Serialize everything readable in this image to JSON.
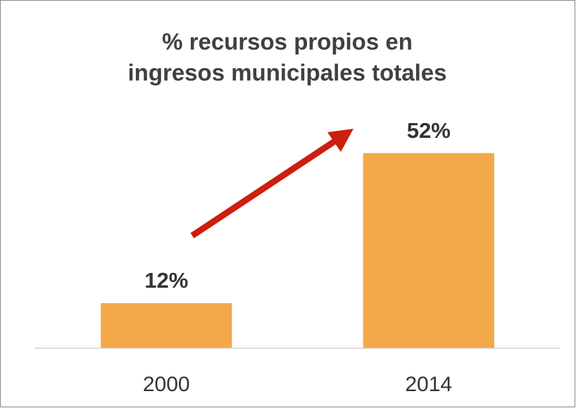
{
  "chart_data": {
    "type": "bar",
    "title": [
      "% recursos propios en",
      "ingresos municipales totales"
    ],
    "categories": [
      "2000",
      "2014"
    ],
    "values": [
      12,
      52
    ],
    "value_labels": [
      "12%",
      "52%"
    ],
    "color": "#f3a84a",
    "ylim": [
      0,
      60
    ]
  }
}
